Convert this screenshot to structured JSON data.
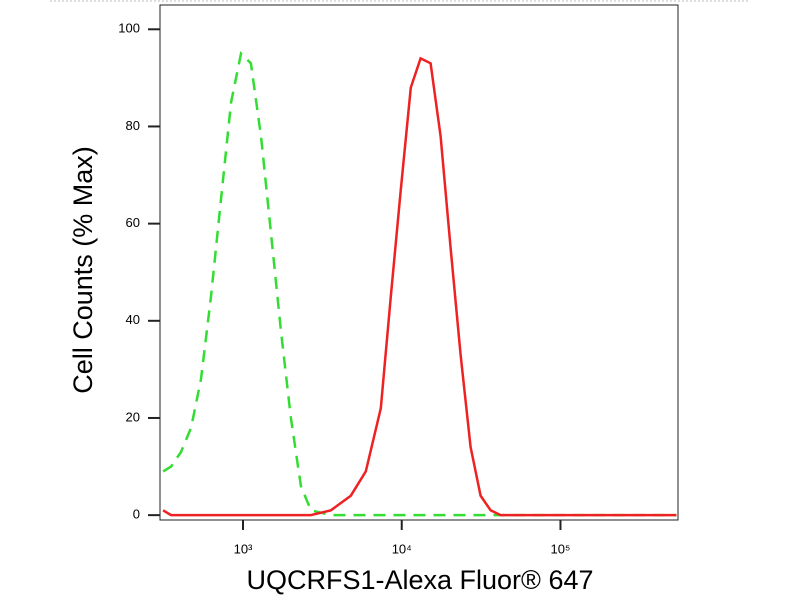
{
  "chart_data": {
    "type": "line",
    "xlabel": "UQCRFS1-Alexa Fluor® 647",
    "ylabel": "Cell Counts (% Max)",
    "xscale": "log",
    "x": [
      314,
      352,
      407,
      471,
      544,
      629,
      727,
      841,
      971,
      1122,
      1298,
      1500,
      1734,
      2004,
      2317,
      2678,
      3577,
      4779,
      5938,
      7381,
      8531,
      9863,
      11400,
      13150,
      15200,
      17580,
      20320,
      23490,
      27160,
      31400,
      36300,
      41970,
      100000,
      318400,
      537000
    ],
    "series": [
      {
        "color": "#33dd33",
        "dash": true,
        "values": [
          9,
          10,
          13,
          18,
          28,
          45,
          65,
          85,
          95,
          93,
          78,
          58,
          38,
          20,
          6,
          1,
          0,
          0,
          0,
          0,
          0,
          0,
          0,
          0,
          0,
          0,
          0,
          0,
          0,
          0,
          0,
          0,
          0,
          0,
          0
        ]
      },
      {
        "color": "#ee2222",
        "dash": false,
        "values": [
          1,
          0,
          0,
          0,
          0,
          0,
          0,
          0,
          0,
          0,
          0,
          0,
          0,
          0,
          0,
          0,
          1,
          4,
          9,
          22,
          45,
          67,
          88,
          94,
          93,
          78,
          55,
          33,
          14,
          4,
          1,
          0,
          0,
          0,
          0
        ]
      }
    ],
    "xlim": [
      300,
      550000
    ],
    "ylim": [
      -1,
      105
    ],
    "xticks": [
      {
        "value": 1000,
        "label": "10³"
      },
      {
        "value": 10000,
        "label": "10⁴"
      },
      {
        "value": 100000,
        "label": "10⁵"
      }
    ],
    "yticks": [
      0,
      20,
      40,
      60,
      80,
      100
    ]
  }
}
